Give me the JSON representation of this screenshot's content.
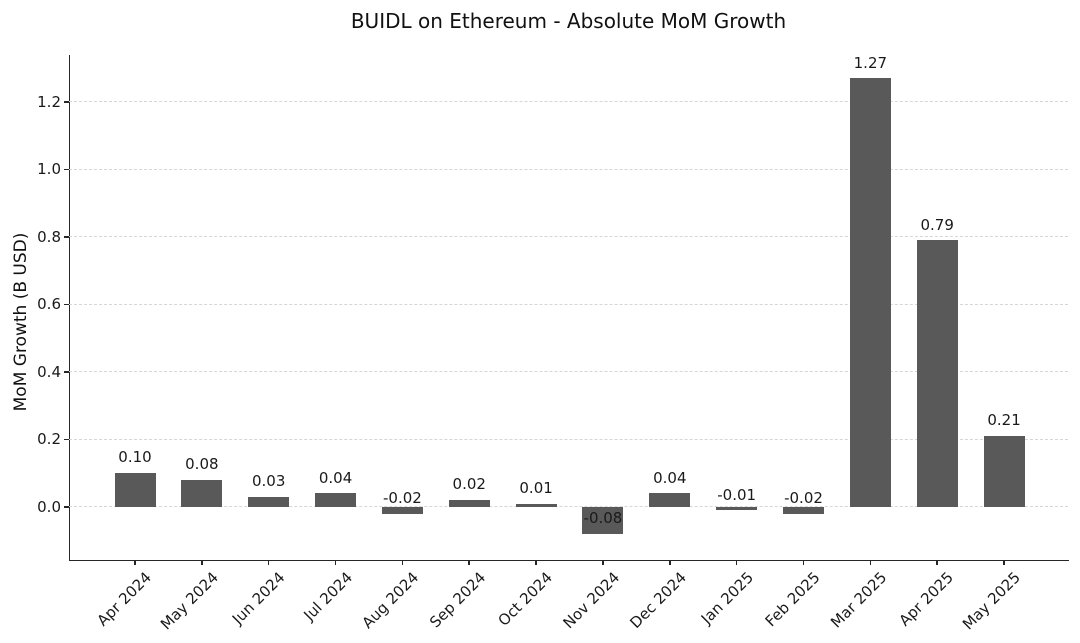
{
  "figure": {
    "title": "BUIDL on Ethereum - Absolute MoM Growth"
  },
  "chart_data": {
    "type": "bar",
    "title": "BUIDL on Ethereum - Absolute MoM Growth",
    "xlabel": "",
    "ylabel": "MoM Growth (B USD)",
    "categories": [
      "Apr 2024",
      "May 2024",
      "Jun 2024",
      "Jul 2024",
      "Aug 2024",
      "Sep 2024",
      "Oct 2024",
      "Nov 2024",
      "Dec 2024",
      "Jan 2025",
      "Feb 2025",
      "Mar 2025",
      "Apr 2025",
      "May 2025"
    ],
    "values": [
      0.1,
      0.08,
      0.03,
      0.04,
      -0.02,
      0.02,
      0.01,
      -0.08,
      0.04,
      -0.01,
      -0.02,
      1.27,
      0.79,
      0.21
    ],
    "bar_labels": [
      "0.10",
      "0.08",
      "0.03",
      "0.04",
      "-0.02",
      "0.02",
      "0.01",
      "-0.08",
      "0.04",
      "-0.01",
      "-0.02",
      "1.27",
      "0.79",
      "0.21"
    ],
    "ytick_values": [
      0.0,
      0.2,
      0.4,
      0.6,
      0.8,
      1.0,
      1.2
    ],
    "ytick_labels": [
      "0.0",
      "0.2",
      "0.4",
      "0.6",
      "0.8",
      "1.0",
      "1.2"
    ],
    "ylim": [
      -0.157,
      1.339
    ],
    "grid": "horizontal-dashed",
    "legend": "none",
    "colors": {
      "bar": "#595959",
      "grid": "#d6d6d6",
      "axis": "#262626",
      "text": "#1a1a1a",
      "background": "#ffffff"
    }
  }
}
